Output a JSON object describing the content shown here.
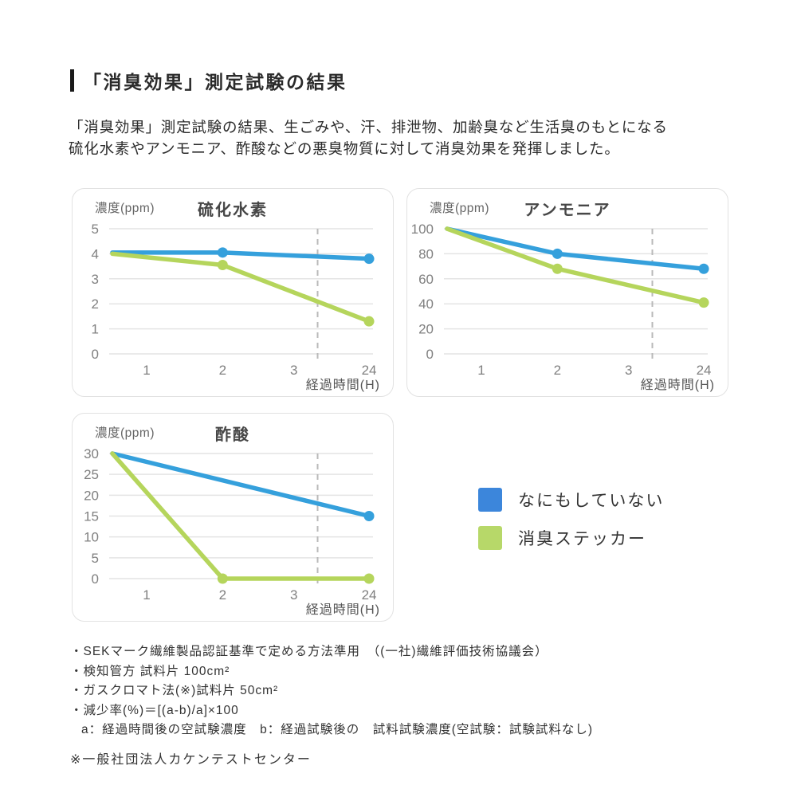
{
  "page": {
    "title": "「消臭効果」測定試験の結果",
    "intro_line1": "「消臭効果」測定試験の結果、生ごみや、汗、排泄物、加齢臭など生活臭のもとになる",
    "intro_line2": "硫化水素やアンモニア、酢酸などの悪臭物質に対して消臭効果を発揮しました。"
  },
  "chart_data": [
    {
      "type": "line",
      "title": "硫化水素",
      "ylabel": "濃度(ppm)",
      "xlabel": "経過時間(H)",
      "x_ticks": [
        "1",
        "2",
        "3",
        "24"
      ],
      "y_ticks": [
        0,
        1,
        2,
        3,
        4,
        5
      ],
      "ylim": [
        0,
        5
      ],
      "grid": true,
      "dashed_vline_frac": 0.79,
      "series": [
        {
          "name": "なにもしていない",
          "color": "#35A0DC",
          "points": [
            {
              "x": "start",
              "y": 4.05
            },
            {
              "x": "2",
              "y": 4.05
            },
            {
              "x": "24",
              "y": 3.8
            }
          ],
          "markers": [
            "2",
            "24"
          ]
        },
        {
          "name": "消臭ステッカー",
          "color": "#B5D55C",
          "points": [
            {
              "x": "start",
              "y": 4.0
            },
            {
              "x": "2",
              "y": 3.55
            },
            {
              "x": "24",
              "y": 1.3
            }
          ],
          "markers": [
            "2",
            "24"
          ]
        }
      ]
    },
    {
      "type": "line",
      "title": "アンモニア",
      "ylabel": "濃度(ppm)",
      "xlabel": "経過時間(H)",
      "x_ticks": [
        "1",
        "2",
        "3",
        "24"
      ],
      "y_ticks": [
        0,
        20,
        40,
        60,
        80,
        100
      ],
      "ylim": [
        0,
        100
      ],
      "grid": true,
      "dashed_vline_frac": 0.79,
      "series": [
        {
          "name": "なにもしていない",
          "color": "#35A0DC",
          "points": [
            {
              "x": "start",
              "y": 100
            },
            {
              "x": "2",
              "y": 80
            },
            {
              "x": "24",
              "y": 68
            }
          ],
          "markers": [
            "2",
            "24"
          ]
        },
        {
          "name": "消臭ステッカー",
          "color": "#B5D55C",
          "points": [
            {
              "x": "start",
              "y": 100
            },
            {
              "x": "2",
              "y": 68
            },
            {
              "x": "24",
              "y": 41
            }
          ],
          "markers": [
            "2",
            "24"
          ]
        }
      ]
    },
    {
      "type": "line",
      "title": "酢酸",
      "ylabel": "濃度(ppm)",
      "xlabel": "経過時間(H)",
      "x_ticks": [
        "1",
        "2",
        "3",
        "24"
      ],
      "y_ticks": [
        0,
        5,
        10,
        15,
        20,
        25,
        30
      ],
      "ylim": [
        0,
        30
      ],
      "grid": true,
      "dashed_vline_frac": 0.79,
      "series": [
        {
          "name": "なにもしていない",
          "color": "#35A0DC",
          "points": [
            {
              "x": "start",
              "y": 30
            },
            {
              "x": "24",
              "y": 15
            }
          ],
          "markers": [
            "24"
          ]
        },
        {
          "name": "消臭ステッカー",
          "color": "#B5D55C",
          "points": [
            {
              "x": "start",
              "y": 30
            },
            {
              "x": "2",
              "y": 0
            },
            {
              "x": "24",
              "y": 0
            }
          ],
          "markers": [
            "2",
            "24"
          ]
        }
      ]
    }
  ],
  "legend": {
    "items": [
      {
        "label": "なにもしていない",
        "color": "#3C86DB"
      },
      {
        "label": "消臭ステッカー",
        "color": "#B7D869"
      }
    ]
  },
  "footnotes": {
    "lines": [
      "・SEKマーク繊維製品認証基準で定める方法準用　（(一社)繊維評価技術協議会）",
      "・検知管方 試料片 100cm²",
      "・ガスクロマト法(※)試料片 50cm²",
      "・減少率(%)＝[(a-b)/a]×100",
      "a：経過時間後の空試験濃度　b：経過試験後の　試料試験濃度(空試験：試験試料なし)"
    ],
    "source_note": "※一般社団法人カケンテストセンター"
  },
  "style": {
    "grid_color": "#e4e4e4",
    "dashed_color": "#b9b9b9",
    "tick_color": "#808080",
    "line_width": 5.5,
    "marker_radius": 6.5
  }
}
